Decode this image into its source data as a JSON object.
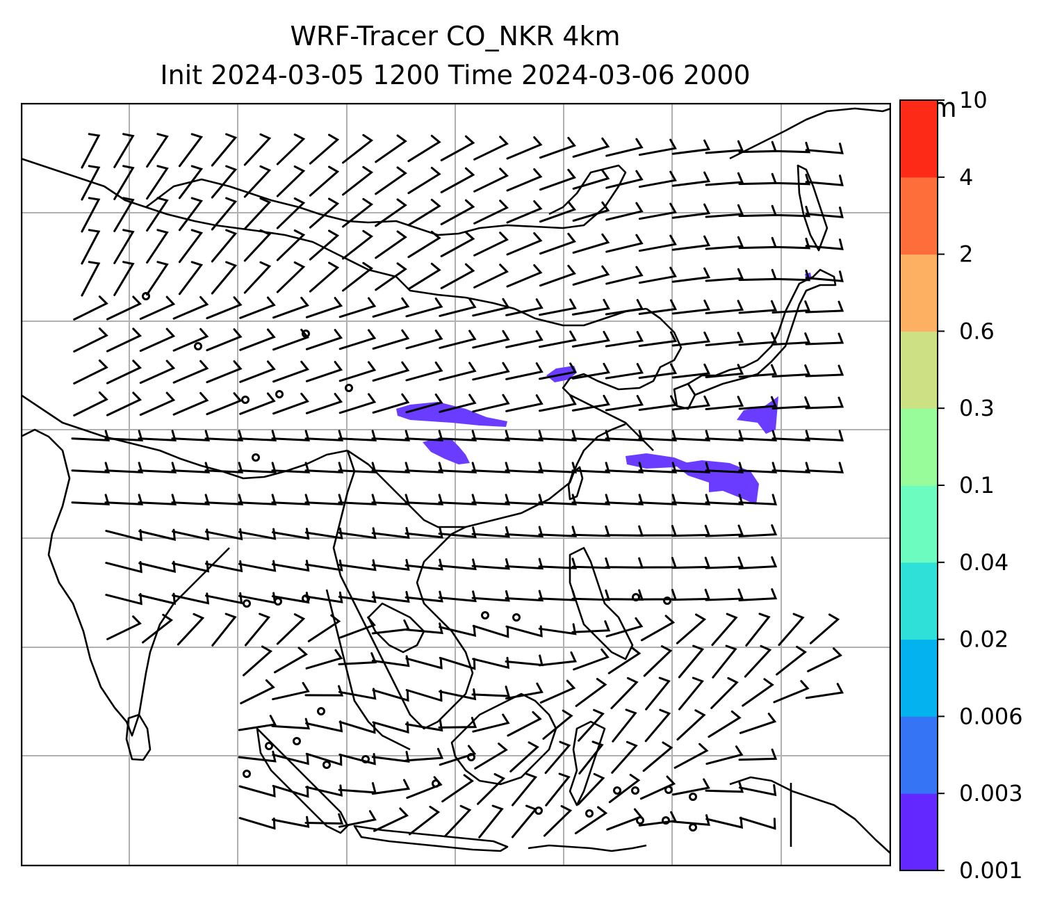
{
  "title": {
    "line1": "WRF-Tracer CO_NKR 4km",
    "line2": "Init 2024-03-05 1200 Time 2024-03-06 2000"
  },
  "colorbar": {
    "unit": "ppm",
    "ticks": [
      "0.001",
      "0.003",
      "0.006",
      "0.02",
      "0.04",
      "0.1",
      "0.3",
      "0.6",
      "2",
      "4",
      "10"
    ],
    "colors": [
      "#6228ff",
      "#3574f5",
      "#03b2ee",
      "#2ee0d8",
      "#6cfcc0",
      "#98fc9a",
      "#cde083",
      "#fdaf62",
      "#fe6e3a",
      "#fc2a17"
    ]
  },
  "map": {
    "tracer_color": "#6a3cff",
    "line_color": "#000000",
    "grid_color": "#b0b0b0"
  }
}
